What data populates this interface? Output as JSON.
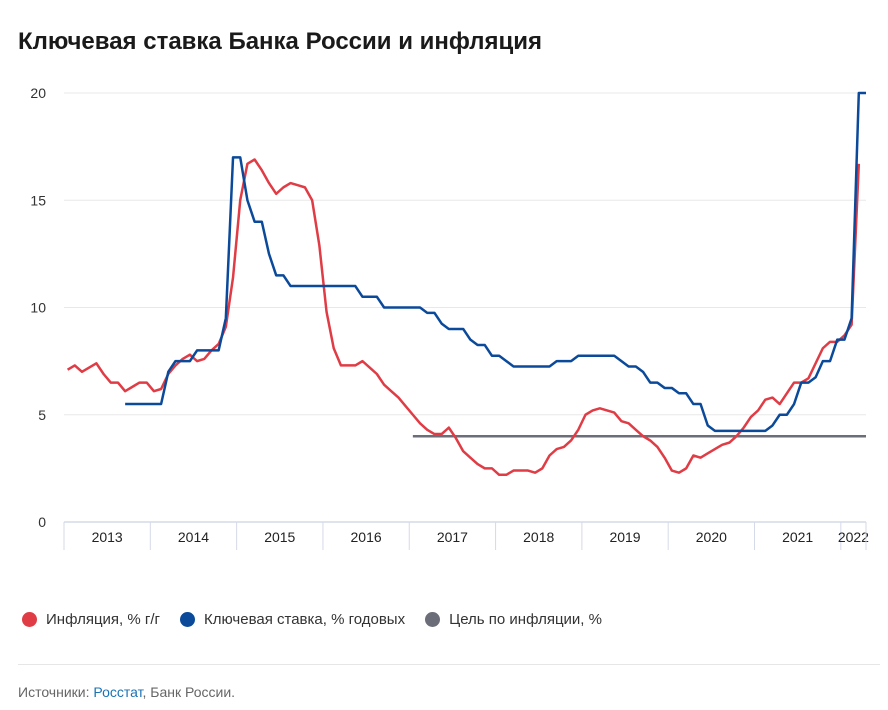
{
  "chart_data": {
    "type": "line",
    "title": "Ключевая ставка Банка России и инфляция",
    "ylim": [
      0,
      20
    ],
    "yticks": [
      "0",
      "5",
      "10",
      "15",
      "20"
    ],
    "xlabels": [
      "2013",
      "2014",
      "2015",
      "2016",
      "2017",
      "2018",
      "2019",
      "2020",
      "2021",
      "2022"
    ],
    "x_unit": "month index (0 = Jan 2013)",
    "grid": true,
    "legend_position": "bottom-left",
    "series": [
      {
        "name": "Инфляция, % г/г",
        "color": "#e03c45",
        "start": 0,
        "values": [
          7.1,
          7.3,
          7.0,
          7.2,
          7.4,
          6.9,
          6.5,
          6.5,
          6.1,
          6.3,
          6.5,
          6.5,
          6.1,
          6.2,
          6.9,
          7.3,
          7.6,
          7.8,
          7.5,
          7.6,
          8.0,
          8.3,
          9.1,
          11.4,
          15.0,
          16.7,
          16.9,
          16.4,
          15.8,
          15.3,
          15.6,
          15.8,
          15.7,
          15.6,
          15.0,
          12.9,
          9.8,
          8.1,
          7.3,
          7.3,
          7.3,
          7.5,
          7.2,
          6.9,
          6.4,
          6.1,
          5.8,
          5.4,
          5.0,
          4.6,
          4.3,
          4.1,
          4.1,
          4.4,
          3.9,
          3.3,
          3.0,
          2.7,
          2.5,
          2.5,
          2.2,
          2.2,
          2.4,
          2.4,
          2.4,
          2.3,
          2.5,
          3.1,
          3.4,
          3.5,
          3.8,
          4.3,
          5.0,
          5.2,
          5.3,
          5.2,
          5.1,
          4.7,
          4.6,
          4.3,
          4.0,
          3.8,
          3.5,
          3.0,
          2.4,
          2.3,
          2.5,
          3.1,
          3.0,
          3.2,
          3.4,
          3.6,
          3.7,
          4.0,
          4.4,
          4.9,
          5.2,
          5.7,
          5.8,
          5.5,
          6.0,
          6.5,
          6.5,
          6.7,
          7.4,
          8.1,
          8.4,
          8.4,
          8.7,
          9.2,
          16.7
        ]
      },
      {
        "name": "Ключевая ставка, % годовых",
        "color": "#0b4a9a",
        "start": 8,
        "values": [
          5.5,
          5.5,
          5.5,
          5.5,
          5.5,
          5.5,
          7.0,
          7.5,
          7.5,
          7.5,
          8.0,
          8.0,
          8.0,
          8.0,
          9.5,
          17,
          17,
          15,
          14,
          14,
          12.5,
          11.5,
          11.5,
          11,
          11,
          11,
          11,
          11,
          11,
          11,
          11,
          11,
          11,
          10.5,
          10.5,
          10.5,
          10,
          10,
          10,
          10,
          10,
          10,
          9.75,
          9.75,
          9.25,
          9,
          9,
          9,
          8.5,
          8.25,
          8.25,
          7.75,
          7.75,
          7.5,
          7.25,
          7.25,
          7.25,
          7.25,
          7.25,
          7.25,
          7.5,
          7.5,
          7.5,
          7.75,
          7.75,
          7.75,
          7.75,
          7.75,
          7.75,
          7.5,
          7.25,
          7.25,
          7.0,
          6.5,
          6.5,
          6.25,
          6.25,
          6.0,
          6.0,
          5.5,
          5.5,
          4.5,
          4.25,
          4.25,
          4.25,
          4.25,
          4.25,
          4.25,
          4.25,
          4.25,
          4.5,
          5.0,
          5.0,
          5.5,
          6.5,
          6.5,
          6.75,
          7.5,
          7.5,
          8.5,
          8.5,
          9.5,
          20,
          20
        ]
      },
      {
        "name": "Цель по инфляции, %",
        "color": "#6b6e78",
        "start": 48,
        "end": 111,
        "values": [
          4,
          4
        ]
      }
    ]
  },
  "footer": {
    "prefix": "Источники: ",
    "link": "Росстат",
    "suffix": ", Банк России."
  }
}
